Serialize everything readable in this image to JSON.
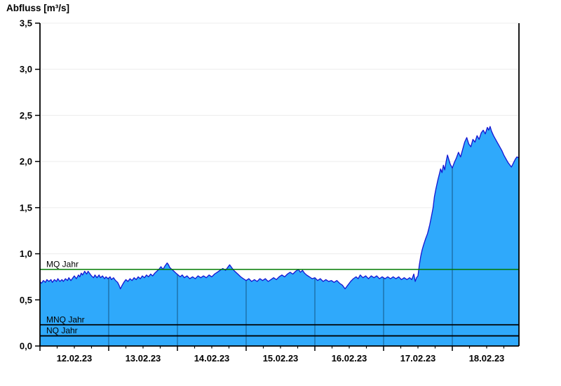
{
  "window": {
    "background": "#ffffff"
  },
  "colors": {
    "area_fill": "#2FA9FB",
    "curve_stroke": "#1414D2",
    "mq_line": "#007A00",
    "mnq_nq_line": "#000000",
    "grid_line": "#ECECEC",
    "day_separator": "#1C6FA8",
    "axis": "#000000",
    "text": "#000000"
  },
  "chart_data": {
    "type": "area",
    "title": "Abfluss [m³/s]",
    "xlabel": "",
    "ylabel": "Abfluss [m³/s]",
    "x_axis": {
      "tick_labels": [
        "12.02.23",
        "13.02.23",
        "14.02.23",
        "15.02.23",
        "16.02.23",
        "17.02.23",
        "18.02.23"
      ],
      "major_tick_unit": "1 day",
      "minor_ticks_per_day": 4,
      "domain_start": "12.02.23 00:00",
      "domain_end_day": 6.97
    },
    "y_axis": {
      "tick_labels": [
        "0,0",
        "0,5",
        "1,0",
        "1,5",
        "2,0",
        "2,5",
        "3,0",
        "3,5"
      ],
      "min": 0.0,
      "max": 3.5,
      "step": 0.5,
      "decimal_separator": ","
    },
    "grid": {
      "horizontal": true,
      "vertical_day_lines_inside_area_only": true
    },
    "legend": "none",
    "reference_lines": [
      {
        "label": "MQ Jahr",
        "value": 0.83,
        "color": "#007A00"
      },
      {
        "label": "MNQ Jahr",
        "value": 0.23,
        "color": "#000000"
      },
      {
        "label": "NQ Jahr",
        "value": 0.11,
        "color": "#000000"
      }
    ],
    "series": [
      {
        "name": "Abfluss",
        "unit": "m³/s",
        "x_unit": "days since 12.02.23 00:00",
        "samples": [
          [
            0.0,
            0.7
          ],
          [
            0.02,
            0.68
          ],
          [
            0.05,
            0.71
          ],
          [
            0.08,
            0.69
          ],
          [
            0.1,
            0.72
          ],
          [
            0.13,
            0.7
          ],
          [
            0.16,
            0.72
          ],
          [
            0.18,
            0.69
          ],
          [
            0.21,
            0.72
          ],
          [
            0.24,
            0.7
          ],
          [
            0.26,
            0.73
          ],
          [
            0.29,
            0.7
          ],
          [
            0.32,
            0.72
          ],
          [
            0.34,
            0.7
          ],
          [
            0.37,
            0.73
          ],
          [
            0.4,
            0.71
          ],
          [
            0.42,
            0.74
          ],
          [
            0.45,
            0.71
          ],
          [
            0.48,
            0.74
          ],
          [
            0.5,
            0.76
          ],
          [
            0.53,
            0.73
          ],
          [
            0.56,
            0.77
          ],
          [
            0.58,
            0.75
          ],
          [
            0.6,
            0.79
          ],
          [
            0.62,
            0.77
          ],
          [
            0.65,
            0.81
          ],
          [
            0.68,
            0.78
          ],
          [
            0.7,
            0.81
          ],
          [
            0.73,
            0.78
          ],
          [
            0.75,
            0.76
          ],
          [
            0.78,
            0.74
          ],
          [
            0.8,
            0.77
          ],
          [
            0.83,
            0.74
          ],
          [
            0.86,
            0.77
          ],
          [
            0.88,
            0.74
          ],
          [
            0.91,
            0.76
          ],
          [
            0.94,
            0.73
          ],
          [
            0.96,
            0.75
          ],
          [
            0.99,
            0.73
          ],
          [
            1.02,
            0.75
          ],
          [
            1.04,
            0.72
          ],
          [
            1.07,
            0.74
          ],
          [
            1.1,
            0.71
          ],
          [
            1.13,
            0.69
          ],
          [
            1.15,
            0.66
          ],
          [
            1.17,
            0.62
          ],
          [
            1.19,
            0.65
          ],
          [
            1.22,
            0.69
          ],
          [
            1.25,
            0.72
          ],
          [
            1.28,
            0.7
          ],
          [
            1.31,
            0.73
          ],
          [
            1.34,
            0.71
          ],
          [
            1.37,
            0.74
          ],
          [
            1.4,
            0.72
          ],
          [
            1.43,
            0.75
          ],
          [
            1.46,
            0.73
          ],
          [
            1.49,
            0.76
          ],
          [
            1.52,
            0.74
          ],
          [
            1.55,
            0.77
          ],
          [
            1.58,
            0.75
          ],
          [
            1.61,
            0.78
          ],
          [
            1.64,
            0.76
          ],
          [
            1.67,
            0.79
          ],
          [
            1.7,
            0.81
          ],
          [
            1.73,
            0.83
          ],
          [
            1.76,
            0.86
          ],
          [
            1.79,
            0.83
          ],
          [
            1.82,
            0.87
          ],
          [
            1.85,
            0.9
          ],
          [
            1.87,
            0.88
          ],
          [
            1.89,
            0.85
          ],
          [
            1.92,
            0.83
          ],
          [
            1.95,
            0.81
          ],
          [
            1.98,
            0.79
          ],
          [
            2.01,
            0.77
          ],
          [
            2.04,
            0.75
          ],
          [
            2.07,
            0.77
          ],
          [
            2.1,
            0.74
          ],
          [
            2.14,
            0.76
          ],
          [
            2.18,
            0.73
          ],
          [
            2.22,
            0.75
          ],
          [
            2.26,
            0.73
          ],
          [
            2.3,
            0.76
          ],
          [
            2.34,
            0.74
          ],
          [
            2.38,
            0.76
          ],
          [
            2.42,
            0.74
          ],
          [
            2.46,
            0.77
          ],
          [
            2.5,
            0.75
          ],
          [
            2.54,
            0.78
          ],
          [
            2.58,
            0.8
          ],
          [
            2.62,
            0.82
          ],
          [
            2.66,
            0.84
          ],
          [
            2.7,
            0.82
          ],
          [
            2.73,
            0.85
          ],
          [
            2.76,
            0.88
          ],
          [
            2.79,
            0.85
          ],
          [
            2.82,
            0.82
          ],
          [
            2.85,
            0.8
          ],
          [
            2.88,
            0.78
          ],
          [
            2.92,
            0.75
          ],
          [
            2.96,
            0.73
          ],
          [
            3.0,
            0.71
          ],
          [
            3.04,
            0.73
          ],
          [
            3.08,
            0.7
          ],
          [
            3.12,
            0.72
          ],
          [
            3.16,
            0.7
          ],
          [
            3.2,
            0.73
          ],
          [
            3.24,
            0.71
          ],
          [
            3.28,
            0.73
          ],
          [
            3.32,
            0.7
          ],
          [
            3.36,
            0.72
          ],
          [
            3.4,
            0.74
          ],
          [
            3.44,
            0.72
          ],
          [
            3.48,
            0.75
          ],
          [
            3.52,
            0.77
          ],
          [
            3.56,
            0.75
          ],
          [
            3.6,
            0.78
          ],
          [
            3.64,
            0.8
          ],
          [
            3.68,
            0.78
          ],
          [
            3.72,
            0.81
          ],
          [
            3.76,
            0.83
          ],
          [
            3.79,
            0.8
          ],
          [
            3.82,
            0.82
          ],
          [
            3.85,
            0.79
          ],
          [
            3.88,
            0.77
          ],
          [
            3.92,
            0.75
          ],
          [
            3.96,
            0.73
          ],
          [
            4.0,
            0.74
          ],
          [
            4.04,
            0.71
          ],
          [
            4.08,
            0.73
          ],
          [
            4.12,
            0.7
          ],
          [
            4.16,
            0.72
          ],
          [
            4.2,
            0.7
          ],
          [
            4.24,
            0.71
          ],
          [
            4.28,
            0.69
          ],
          [
            4.32,
            0.71
          ],
          [
            4.36,
            0.68
          ],
          [
            4.4,
            0.66
          ],
          [
            4.44,
            0.62
          ],
          [
            4.48,
            0.66
          ],
          [
            4.52,
            0.7
          ],
          [
            4.56,
            0.73
          ],
          [
            4.6,
            0.75
          ],
          [
            4.63,
            0.73
          ],
          [
            4.66,
            0.77
          ],
          [
            4.7,
            0.74
          ],
          [
            4.74,
            0.76
          ],
          [
            4.78,
            0.73
          ],
          [
            4.82,
            0.76
          ],
          [
            4.86,
            0.74
          ],
          [
            4.9,
            0.76
          ],
          [
            4.94,
            0.73
          ],
          [
            4.98,
            0.75
          ],
          [
            5.02,
            0.73
          ],
          [
            5.06,
            0.75
          ],
          [
            5.1,
            0.73
          ],
          [
            5.14,
            0.75
          ],
          [
            5.18,
            0.73
          ],
          [
            5.22,
            0.75
          ],
          [
            5.26,
            0.72
          ],
          [
            5.3,
            0.74
          ],
          [
            5.34,
            0.72
          ],
          [
            5.38,
            0.74
          ],
          [
            5.41,
            0.72
          ],
          [
            5.44,
            0.78
          ],
          [
            5.46,
            0.7
          ],
          [
            5.48,
            0.74
          ],
          [
            5.5,
            0.76
          ],
          [
            5.52,
            0.88
          ],
          [
            5.54,
            0.97
          ],
          [
            5.56,
            1.04
          ],
          [
            5.58,
            1.09
          ],
          [
            5.61,
            1.16
          ],
          [
            5.64,
            1.22
          ],
          [
            5.67,
            1.31
          ],
          [
            5.7,
            1.42
          ],
          [
            5.72,
            1.5
          ],
          [
            5.74,
            1.62
          ],
          [
            5.76,
            1.7
          ],
          [
            5.79,
            1.8
          ],
          [
            5.81,
            1.86
          ],
          [
            5.83,
            1.92
          ],
          [
            5.85,
            1.88
          ],
          [
            5.87,
            1.96
          ],
          [
            5.89,
            1.91
          ],
          [
            5.91,
            2.0
          ],
          [
            5.93,
            2.07
          ],
          [
            5.95,
            2.02
          ],
          [
            5.97,
            1.97
          ],
          [
            6.0,
            1.93
          ],
          [
            6.03,
            1.99
          ],
          [
            6.06,
            2.04
          ],
          [
            6.09,
            2.1
          ],
          [
            6.12,
            2.05
          ],
          [
            6.15,
            2.13
          ],
          [
            6.18,
            2.21
          ],
          [
            6.21,
            2.26
          ],
          [
            6.24,
            2.19
          ],
          [
            6.27,
            2.16
          ],
          [
            6.3,
            2.24
          ],
          [
            6.33,
            2.21
          ],
          [
            6.36,
            2.28
          ],
          [
            6.39,
            2.24
          ],
          [
            6.42,
            2.31
          ],
          [
            6.45,
            2.34
          ],
          [
            6.48,
            2.3
          ],
          [
            6.51,
            2.37
          ],
          [
            6.53,
            2.34
          ],
          [
            6.55,
            2.38
          ],
          [
            6.57,
            2.33
          ],
          [
            6.6,
            2.28
          ],
          [
            6.63,
            2.24
          ],
          [
            6.66,
            2.2
          ],
          [
            6.69,
            2.16
          ],
          [
            6.72,
            2.12
          ],
          [
            6.75,
            2.07
          ],
          [
            6.78,
            2.03
          ],
          [
            6.81,
            1.99
          ],
          [
            6.84,
            1.96
          ],
          [
            6.86,
            1.94
          ],
          [
            6.88,
            1.97
          ],
          [
            6.9,
            2.0
          ],
          [
            6.92,
            2.03
          ],
          [
            6.94,
            2.05
          ],
          [
            6.97,
            2.04
          ]
        ]
      }
    ]
  }
}
